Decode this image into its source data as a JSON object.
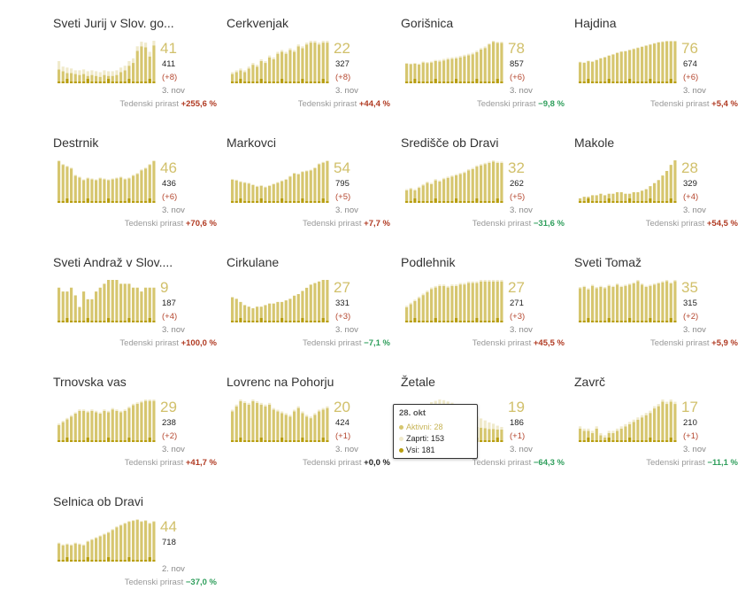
{
  "colors": {
    "active": "#d6c66f",
    "closed": "#f0eacb",
    "deaths": "#b89e10"
  },
  "labels": {
    "growth": "Tedenski prirast"
  },
  "chart_data": [
    {
      "type": "bar",
      "name": "Sveti Jurij v Slov. go...",
      "active": 41,
      "total": "411",
      "delta": "(+8)",
      "date": "3. nov",
      "growth": "+255,6 %",
      "trend": "up",
      "values": [
        15,
        13,
        11,
        11,
        10,
        9,
        10,
        8,
        9,
        8,
        7,
        9,
        8,
        8,
        9,
        12,
        14,
        19,
        22,
        35,
        40,
        39,
        29,
        41
      ],
      "closed": [
        9,
        5,
        6,
        5,
        4,
        5,
        5,
        5,
        5,
        5,
        5,
        5,
        5,
        5,
        5,
        5,
        5,
        5,
        5,
        5,
        5,
        5,
        5,
        5
      ]
    },
    {
      "type": "bar",
      "name": "Cerkvenjak",
      "active": 22,
      "total": "327",
      "delta": "(+8)",
      "date": "3. nov",
      "growth": "+44,4 %",
      "trend": "up",
      "values": [
        5,
        6,
        7,
        6,
        8,
        10,
        9,
        12,
        11,
        14,
        13,
        16,
        17,
        16,
        18,
        17,
        20,
        19,
        21,
        22,
        22,
        21,
        22,
        22
      ],
      "closed": [
        1,
        1,
        1,
        1,
        1,
        1,
        1,
        1,
        1,
        1,
        1,
        1,
        1,
        1,
        1,
        1,
        1,
        1,
        1,
        1,
        1,
        1,
        1,
        1
      ]
    },
    {
      "type": "bar",
      "name": "Gorišnica",
      "active": 78,
      "total": "857",
      "delta": "(+6)",
      "date": "3. nov",
      "growth": "−9,8 %",
      "trend": "down",
      "values": [
        38,
        37,
        38,
        36,
        40,
        39,
        40,
        43,
        42,
        44,
        46,
        47,
        48,
        50,
        52,
        54,
        56,
        60,
        65,
        68,
        75,
        80,
        78,
        78
      ],
      "closed": [
        1,
        1,
        1,
        2,
        2,
        2,
        2,
        2,
        3,
        3,
        3,
        3,
        3,
        3,
        3,
        3,
        3,
        3,
        3,
        3,
        2,
        2,
        2,
        2
      ]
    },
    {
      "type": "bar",
      "name": "Hajdina",
      "active": 76,
      "total": "674",
      "delta": "(+6)",
      "date": "3. nov",
      "growth": "+5,4 %",
      "trend": "up",
      "values": [
        38,
        37,
        40,
        39,
        42,
        45,
        47,
        50,
        52,
        55,
        57,
        58,
        60,
        62,
        64,
        66,
        68,
        70,
        72,
        74,
        75,
        76,
        76,
        76
      ],
      "closed": [
        1,
        1,
        1,
        1,
        1,
        1,
        1,
        1,
        1,
        1,
        1,
        1,
        1,
        1,
        1,
        1,
        1,
        1,
        1,
        1,
        1,
        1,
        1,
        1
      ]
    },
    {
      "type": "bar",
      "name": "Destrnik",
      "active": 46,
      "total": "436",
      "delta": "(+6)",
      "date": "3. nov",
      "growth": "+70,6 %",
      "trend": "up",
      "values": [
        46,
        42,
        40,
        38,
        30,
        28,
        25,
        27,
        26,
        25,
        27,
        26,
        25,
        26,
        27,
        28,
        26,
        27,
        30,
        32,
        36,
        38,
        42,
        46
      ],
      "closed": [
        1,
        1,
        1,
        1,
        1,
        1,
        1,
        1,
        1,
        1,
        1,
        1,
        1,
        1,
        1,
        1,
        1,
        1,
        1,
        1,
        1,
        1,
        1,
        1
      ]
    },
    {
      "type": "bar",
      "name": "Markovci",
      "active": 54,
      "total": "795",
      "delta": "(+5)",
      "date": "3. nov",
      "growth": "+7,7 %",
      "trend": "up",
      "values": [
        30,
        29,
        27,
        26,
        25,
        23,
        21,
        22,
        20,
        22,
        24,
        26,
        28,
        30,
        34,
        38,
        37,
        40,
        41,
        42,
        45,
        50,
        52,
        54
      ],
      "closed": [
        1,
        1,
        1,
        1,
        1,
        1,
        1,
        1,
        1,
        1,
        1,
        1,
        1,
        1,
        1,
        1,
        1,
        1,
        1,
        1,
        1,
        1,
        1,
        1
      ]
    },
    {
      "type": "bar",
      "name": "Središče ob Dravi",
      "active": 32,
      "total": "262",
      "delta": "(+5)",
      "date": "3. nov",
      "growth": "−31,6 %",
      "trend": "down",
      "values": [
        10,
        11,
        10,
        12,
        14,
        16,
        15,
        18,
        17,
        19,
        20,
        21,
        22,
        23,
        24,
        26,
        27,
        29,
        30,
        31,
        32,
        33,
        32,
        32
      ],
      "closed": [
        1,
        1,
        1,
        1,
        1,
        1,
        1,
        1,
        1,
        1,
        1,
        1,
        1,
        1,
        1,
        1,
        1,
        1,
        1,
        1,
        1,
        1,
        1,
        1
      ]
    },
    {
      "type": "bar",
      "name": "Makole",
      "active": 28,
      "total": "329",
      "delta": "(+4)",
      "date": "3. nov",
      "growth": "+54,5 %",
      "trend": "up",
      "values": [
        3,
        4,
        4,
        5,
        5,
        6,
        5,
        6,
        6,
        7,
        7,
        6,
        6,
        7,
        7,
        8,
        9,
        11,
        13,
        15,
        18,
        21,
        25,
        28
      ],
      "closed": [
        0,
        0,
        0,
        0,
        0,
        0,
        0,
        0,
        0,
        0,
        0,
        0,
        0,
        0,
        0,
        0,
        0,
        0,
        0,
        0,
        0,
        0,
        0,
        0
      ]
    },
    {
      "type": "bar",
      "name": "Sveti Andraž v Slov....",
      "active": 9,
      "total": "187",
      "delta": "(+4)",
      "date": "3. nov",
      "growth": "+100,0 %",
      "trend": "up",
      "values": [
        9,
        8,
        8,
        9,
        7,
        4,
        8,
        6,
        6,
        8,
        9,
        10,
        11,
        11,
        11,
        10,
        10,
        10,
        9,
        9,
        8,
        9,
        9,
        9
      ],
      "closed": [
        0,
        0,
        0,
        0,
        0,
        0,
        0,
        0,
        0,
        0,
        0,
        0,
        0,
        0,
        0,
        0,
        0,
        0,
        0,
        0,
        0,
        0,
        0,
        0
      ]
    },
    {
      "type": "bar",
      "name": "Cirkulane",
      "active": 27,
      "total": "331",
      "delta": "(+3)",
      "date": "3. nov",
      "growth": "−7,1 %",
      "trend": "down",
      "values": [
        16,
        15,
        13,
        11,
        10,
        9,
        10,
        10,
        11,
        12,
        12,
        13,
        13,
        14,
        15,
        17,
        18,
        20,
        22,
        24,
        25,
        26,
        27,
        27
      ],
      "closed": [
        0,
        0,
        0,
        0,
        0,
        0,
        0,
        0,
        0,
        0,
        0,
        0,
        0,
        0,
        0,
        0,
        0,
        0,
        0,
        0,
        0,
        0,
        0,
        0
      ]
    },
    {
      "type": "bar",
      "name": "Podlehnik",
      "active": 27,
      "total": "271",
      "delta": "(+3)",
      "date": "3. nov",
      "growth": "+45,5 %",
      "trend": "up",
      "values": [
        10,
        12,
        14,
        16,
        18,
        20,
        22,
        23,
        24,
        24,
        23,
        24,
        24,
        25,
        25,
        26,
        26,
        26,
        27,
        27,
        27,
        27,
        27,
        27
      ],
      "closed": [
        1,
        1,
        1,
        1,
        1,
        1,
        1,
        1,
        1,
        1,
        1,
        1,
        1,
        1,
        1,
        1,
        1,
        1,
        1,
        1,
        1,
        1,
        1,
        1
      ]
    },
    {
      "type": "bar",
      "name": "Sveti Tomaž",
      "active": 35,
      "total": "315",
      "delta": "(+2)",
      "date": "3. nov",
      "growth": "+5,9 %",
      "trend": "up",
      "values": [
        29,
        30,
        28,
        31,
        29,
        30,
        29,
        31,
        30,
        32,
        30,
        31,
        32,
        33,
        35,
        32,
        30,
        31,
        32,
        33,
        34,
        35,
        33,
        35
      ],
      "closed": [
        1,
        1,
        1,
        1,
        1,
        1,
        1,
        1,
        1,
        1,
        1,
        1,
        1,
        1,
        1,
        1,
        1,
        1,
        1,
        1,
        1,
        1,
        1,
        1
      ]
    },
    {
      "type": "bar",
      "name": "Trnovska vas",
      "active": 29,
      "total": "238",
      "delta": "(+2)",
      "date": "3. nov",
      "growth": "+41,7 %",
      "trend": "up",
      "values": [
        12,
        14,
        16,
        18,
        20,
        22,
        22,
        21,
        22,
        21,
        20,
        22,
        21,
        23,
        22,
        21,
        22,
        24,
        26,
        27,
        28,
        29,
        29,
        29
      ],
      "closed": [
        1,
        1,
        1,
        1,
        1,
        1,
        1,
        1,
        1,
        1,
        1,
        1,
        1,
        1,
        1,
        1,
        1,
        1,
        1,
        1,
        1,
        1,
        1,
        1
      ]
    },
    {
      "type": "bar",
      "name": "Lovrenc na Pohorju",
      "active": 20,
      "total": "424",
      "delta": "(+1)",
      "date": "3. nov",
      "growth": "+0,0 %",
      "trend": "zero",
      "values": [
        18,
        21,
        24,
        23,
        22,
        24,
        23,
        22,
        21,
        22,
        19,
        18,
        17,
        16,
        15,
        18,
        20,
        17,
        15,
        14,
        16,
        18,
        19,
        20
      ],
      "closed": [
        1,
        1,
        1,
        1,
        1,
        1,
        1,
        1,
        1,
        1,
        1,
        1,
        1,
        1,
        1,
        1,
        1,
        1,
        1,
        1,
        1,
        1,
        1,
        1
      ]
    },
    {
      "type": "bar",
      "name": "Žetale",
      "active": 19,
      "total": "186",
      "delta": "(+1)",
      "date": "3. nov",
      "growth": "−64,3 %",
      "trend": "down",
      "values": [
        22,
        24,
        26,
        28,
        30,
        32,
        33,
        34,
        35,
        34,
        33,
        32,
        30,
        28,
        27,
        25,
        24,
        23,
        22,
        21,
        20,
        20,
        19,
        19
      ],
      "closed": [
        12,
        14,
        16,
        20,
        24,
        26,
        28,
        29,
        30,
        30,
        29,
        28,
        26,
        24,
        22,
        20,
        18,
        16,
        14,
        12,
        10,
        8,
        6,
        4
      ],
      "tooltip": {
        "date": "28. okt",
        "active_label": "Aktivni: 28",
        "closed_label": "Zaprti: 153",
        "total_label": "Vsi: 181"
      }
    },
    {
      "type": "bar",
      "name": "Zavrč",
      "active": 17,
      "total": "210",
      "delta": "(+1)",
      "date": "3. nov",
      "growth": "−11,1 %",
      "trend": "down",
      "values": [
        6,
        5,
        5,
        4,
        6,
        3,
        2,
        4,
        4,
        5,
        6,
        7,
        8,
        9,
        10,
        11,
        12,
        13,
        15,
        16,
        18,
        17,
        18,
        17
      ],
      "closed": [
        1,
        1,
        1,
        1,
        1,
        1,
        1,
        1,
        1,
        1,
        1,
        1,
        1,
        1,
        1,
        1,
        1,
        1,
        1,
        1,
        1,
        1,
        1,
        1
      ]
    },
    {
      "type": "bar",
      "name": "Selnica ob Dravi",
      "active": 44,
      "total": "718",
      "delta": "",
      "date": "2. nov",
      "growth": "−37,0 %",
      "trend": "down",
      "values": [
        20,
        18,
        19,
        18,
        20,
        19,
        18,
        22,
        24,
        26,
        28,
        30,
        32,
        35,
        38,
        40,
        42,
        44,
        45,
        46,
        44,
        45,
        42,
        44
      ],
      "closed": [
        1,
        1,
        1,
        1,
        1,
        1,
        1,
        1,
        1,
        1,
        1,
        1,
        1,
        1,
        1,
        1,
        1,
        1,
        1,
        1,
        1,
        1,
        1,
        1
      ]
    }
  ]
}
